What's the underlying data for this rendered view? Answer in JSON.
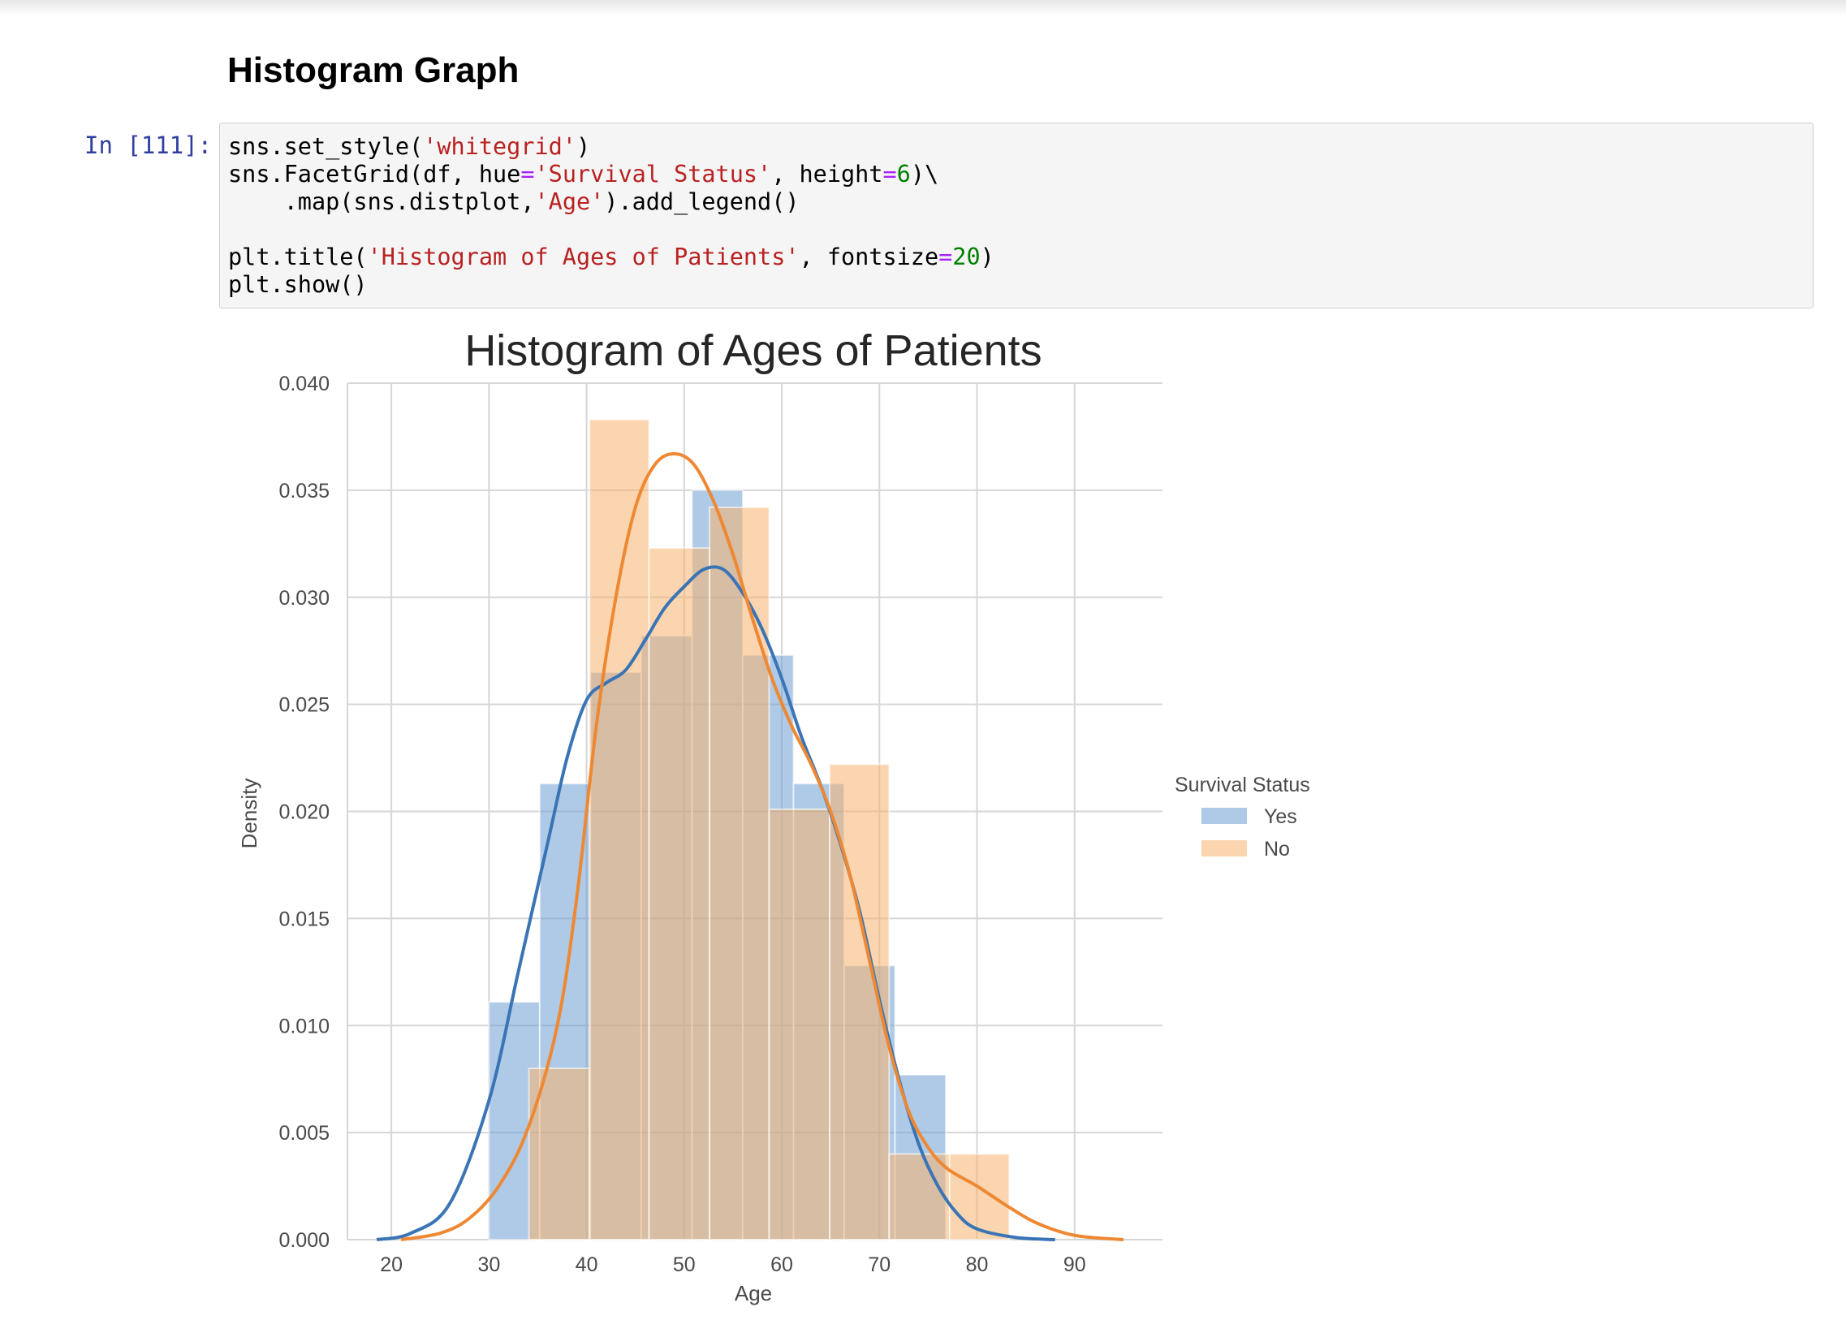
{
  "heading": "Histogram Graph",
  "cell": {
    "prompt": "In [111]:",
    "code": {
      "line1": [
        "sns.set_style(",
        "'whitegrid'",
        ")"
      ],
      "line2": [
        "sns.FacetGrid(df, hue",
        "=",
        "'Survival Status'",
        ", height",
        "=",
        "6",
        ")\\"
      ],
      "line3": [
        "    .map(sns.distplot,",
        "'Age'",
        ").add_legend()"
      ],
      "line5": [
        "plt.title(",
        "'Histogram of Ages of Patients'",
        ", fontsize",
        "=",
        "20",
        ")"
      ],
      "line6": "plt.show()"
    }
  },
  "colors": {
    "yes_bar": "#6e9fd2",
    "no_bar": "#f5b26e",
    "yes_line": "#3a74b5",
    "no_line": "#ee8833",
    "prompt": "#303F9F",
    "string": "#BA2121",
    "operator": "#AA22FF",
    "number": "#008000"
  },
  "chart_data": {
    "type": "histogram",
    "title": "Histogram of Ages of Patients",
    "xlabel": "Age",
    "ylabel": "Density",
    "xlim": [
      15.5,
      99
    ],
    "ylim": [
      0,
      0.04
    ],
    "xticks": [
      "20",
      "30",
      "40",
      "50",
      "60",
      "70",
      "80",
      "90"
    ],
    "yticks": [
      "0.000",
      "0.005",
      "0.010",
      "0.015",
      "0.020",
      "0.025",
      "0.030",
      "0.035",
      "0.040"
    ],
    "grid": true,
    "legend": {
      "title": "Survival Status",
      "placement": "right",
      "entries": [
        "Yes",
        "No"
      ]
    },
    "series": [
      {
        "name": "Yes",
        "bins": [
          [
            30,
            35.2,
            0.0111
          ],
          [
            35.2,
            40.4,
            0.0213
          ],
          [
            40.4,
            45.6,
            0.0265
          ],
          [
            45.6,
            50.8,
            0.0282
          ],
          [
            50.8,
            56,
            0.035
          ],
          [
            56,
            61.2,
            0.0273
          ],
          [
            61.2,
            66.4,
            0.0213
          ],
          [
            66.4,
            71.6,
            0.0128
          ],
          [
            71.6,
            76.8,
            0.0077
          ]
        ],
        "kde": [
          [
            18.5,
            0.0
          ],
          [
            22,
            0.0003
          ],
          [
            26,
            0.0017
          ],
          [
            30,
            0.0065
          ],
          [
            33,
            0.0125
          ],
          [
            36,
            0.0185
          ],
          [
            38,
            0.0225
          ],
          [
            40,
            0.0252
          ],
          [
            42,
            0.026
          ],
          [
            44,
            0.0266
          ],
          [
            46,
            0.028
          ],
          [
            48,
            0.0295
          ],
          [
            50,
            0.0305
          ],
          [
            52,
            0.0313
          ],
          [
            54,
            0.0313
          ],
          [
            56,
            0.0302
          ],
          [
            58,
            0.0285
          ],
          [
            60,
            0.0262
          ],
          [
            62,
            0.0235
          ],
          [
            64,
            0.0212
          ],
          [
            66,
            0.0185
          ],
          [
            68,
            0.0153
          ],
          [
            70,
            0.0112
          ],
          [
            72,
            0.0075
          ],
          [
            74,
            0.0045
          ],
          [
            76,
            0.0025
          ],
          [
            78,
            0.0012
          ],
          [
            80,
            0.0005
          ],
          [
            84,
            0.0001
          ],
          [
            88,
            0.0
          ]
        ]
      },
      {
        "name": "No",
        "bins": [
          [
            34.1,
            40.3,
            0.008
          ],
          [
            40.3,
            46.4,
            0.0383
          ],
          [
            46.4,
            52.6,
            0.0323
          ],
          [
            52.6,
            58.7,
            0.0342
          ],
          [
            58.7,
            64.9,
            0.0201
          ],
          [
            64.9,
            71.0,
            0.0222
          ],
          [
            71.0,
            77.2,
            0.004
          ],
          [
            77.2,
            83.3,
            0.004
          ]
        ],
        "kde": [
          [
            21,
            0.0
          ],
          [
            25,
            0.0003
          ],
          [
            28,
            0.001
          ],
          [
            31,
            0.0025
          ],
          [
            34,
            0.0052
          ],
          [
            37,
            0.01
          ],
          [
            39,
            0.016
          ],
          [
            41,
            0.024
          ],
          [
            43,
            0.03
          ],
          [
            45,
            0.0342
          ],
          [
            47,
            0.0362
          ],
          [
            49,
            0.0367
          ],
          [
            51,
            0.0362
          ],
          [
            53,
            0.0345
          ],
          [
            55,
            0.032
          ],
          [
            57,
            0.029
          ],
          [
            59,
            0.0262
          ],
          [
            61,
            0.024
          ],
          [
            63,
            0.0222
          ],
          [
            65,
            0.02
          ],
          [
            67,
            0.017
          ],
          [
            69,
            0.013
          ],
          [
            71,
            0.009
          ],
          [
            73,
            0.006
          ],
          [
            75,
            0.0043
          ],
          [
            77,
            0.0033
          ],
          [
            80,
            0.0025
          ],
          [
            83,
            0.0016
          ],
          [
            86,
            0.0008
          ],
          [
            90,
            0.0002
          ],
          [
            95,
            0.0
          ]
        ]
      }
    ]
  }
}
